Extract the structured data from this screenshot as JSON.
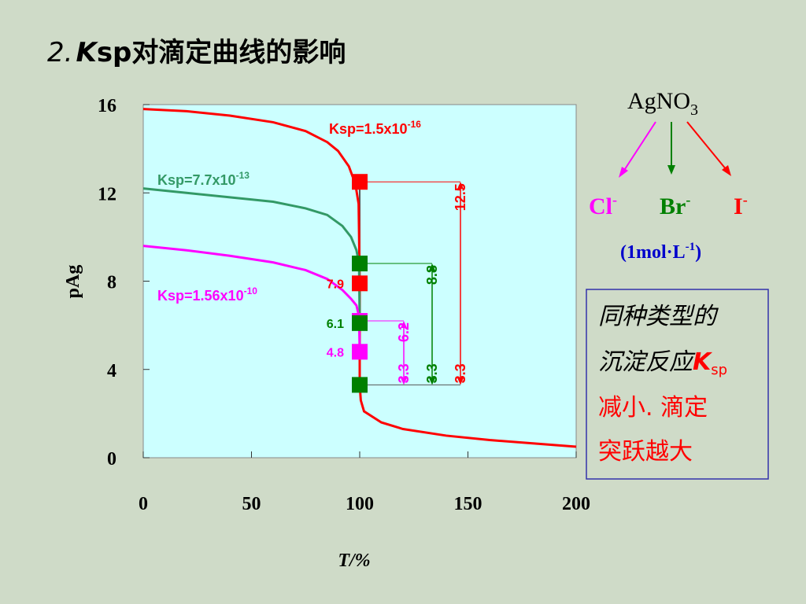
{
  "title": {
    "prefix": "2.",
    "k": "K",
    "rest": "sp对滴定曲线的影响"
  },
  "chart_data": {
    "type": "line",
    "xlabel": "T/%",
    "ylabel": "pAg",
    "xlim": [
      0,
      200
    ],
    "xticks": [
      0,
      50,
      100,
      150,
      200
    ],
    "ylim": [
      0,
      16
    ],
    "yticks": [
      0,
      4,
      8,
      12,
      16
    ],
    "series": [
      {
        "name": "Ksp=1.5x10",
        "name_sup": "-16",
        "color": "#ff0000",
        "x": [
          0,
          20,
          40,
          60,
          75,
          85,
          90,
          95,
          98,
          99.5,
          100,
          100,
          100.5,
          102,
          110,
          120,
          140,
          160,
          180,
          200
        ],
        "values": [
          15.8,
          15.7,
          15.5,
          15.2,
          14.8,
          14.3,
          13.9,
          13.2,
          12.4,
          11.5,
          8,
          3.3,
          2.6,
          2.1,
          1.6,
          1.3,
          1.0,
          0.8,
          0.65,
          0.5
        ]
      },
      {
        "name": "Ksp=7.7x10",
        "name_sup": "-13",
        "color": "#339966",
        "x": [
          0,
          20,
          40,
          60,
          75,
          85,
          92,
          96,
          98.5,
          99.7,
          100
        ],
        "values": [
          12.2,
          12.0,
          11.8,
          11.6,
          11.3,
          11.0,
          10.5,
          10.0,
          9.4,
          8.8,
          6.1
        ]
      },
      {
        "name": "Ksp=1.56x10",
        "name_sup": "-10",
        "color": "#ff00ff",
        "x": [
          0,
          20,
          40,
          60,
          75,
          85,
          92,
          96,
          98.5,
          99.7,
          100
        ],
        "values": [
          9.6,
          9.4,
          9.15,
          8.85,
          8.5,
          8.1,
          7.6,
          7.2,
          6.9,
          6.4,
          4.8
        ]
      }
    ],
    "markers": {
      "x": [
        100,
        100,
        100,
        100,
        100,
        100,
        100
      ],
      "values": [
        12.5,
        8.8,
        7.9,
        6.2,
        6.1,
        4.8,
        3.3
      ],
      "colors": [
        "#ff0000",
        "#008000",
        "#ff0000",
        "#ff00ff",
        "#008000",
        "#ff00ff",
        "#008000"
      ]
    },
    "jumps": [
      {
        "from": 3.3,
        "to": 12.5,
        "color": "#ff0000"
      },
      {
        "from": 3.3,
        "to": 8.8,
        "color": "#008000"
      },
      {
        "from": 3.3,
        "to": 6.2,
        "color": "#ff00ff"
      }
    ]
  },
  "reagent": {
    "name": "AgNO",
    "sub": "3"
  },
  "ions": [
    {
      "name": "Cl",
      "sup": "-"
    },
    {
      "name": "Br",
      "sup": "-"
    },
    {
      "name": "I",
      "sup": "-"
    }
  ],
  "conc": {
    "pre": "(1mol·L",
    "sup": "-1",
    "post": ")"
  },
  "note": {
    "line1": "同种类型的",
    "line2": "沉淀反应",
    "k": "K",
    "sub": "sp",
    "line3": "减小. 滴定",
    "line4": "突跃越大"
  }
}
